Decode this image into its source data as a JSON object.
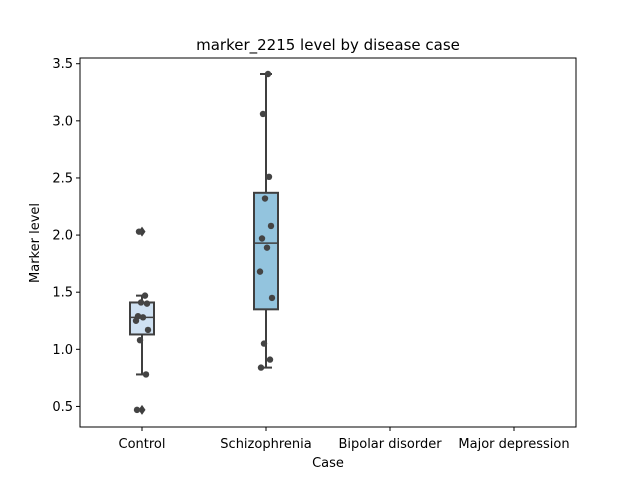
{
  "chart_data": {
    "type": "box",
    "title": "marker_2215 level by disease case",
    "xlabel": "Case",
    "ylabel": "Marker level",
    "categories": [
      "Control",
      "Schizophrenia",
      "Bipolar disorder",
      "Major depression"
    ],
    "ylim": [
      0.32,
      3.55
    ],
    "yticks": [
      0.5,
      1.0,
      1.5,
      2.0,
      2.5,
      3.0,
      3.5
    ],
    "ytick_labels": [
      "0.5",
      "1.0",
      "1.5",
      "2.0",
      "2.5",
      "3.0",
      "3.5"
    ],
    "grid": false,
    "colors": {
      "Control": "#cfe1f2",
      "Schizophrenia": "#93c4de",
      "line": "#3f3f3f",
      "point": "#444444"
    },
    "boxes": [
      {
        "category": "Control",
        "q1": 1.13,
        "median": 1.28,
        "q3": 1.41,
        "whisker_low": 0.78,
        "whisker_high": 1.47,
        "outliers": [
          0.47,
          2.03
        ]
      },
      {
        "category": "Schizophrenia",
        "q1": 1.35,
        "median": 1.93,
        "q3": 2.37,
        "whisker_low": 0.84,
        "whisker_high": 3.41,
        "outliers": []
      }
    ],
    "points": [
      {
        "category": "Control",
        "values": [
          0.47,
          0.78,
          1.08,
          1.17,
          1.25,
          1.28,
          1.29,
          1.4,
          1.41,
          1.47,
          2.03
        ]
      },
      {
        "category": "Schizophrenia",
        "values": [
          0.84,
          0.91,
          1.05,
          1.45,
          1.68,
          1.89,
          1.97,
          2.08,
          2.32,
          2.51,
          3.06,
          3.41
        ]
      }
    ]
  }
}
